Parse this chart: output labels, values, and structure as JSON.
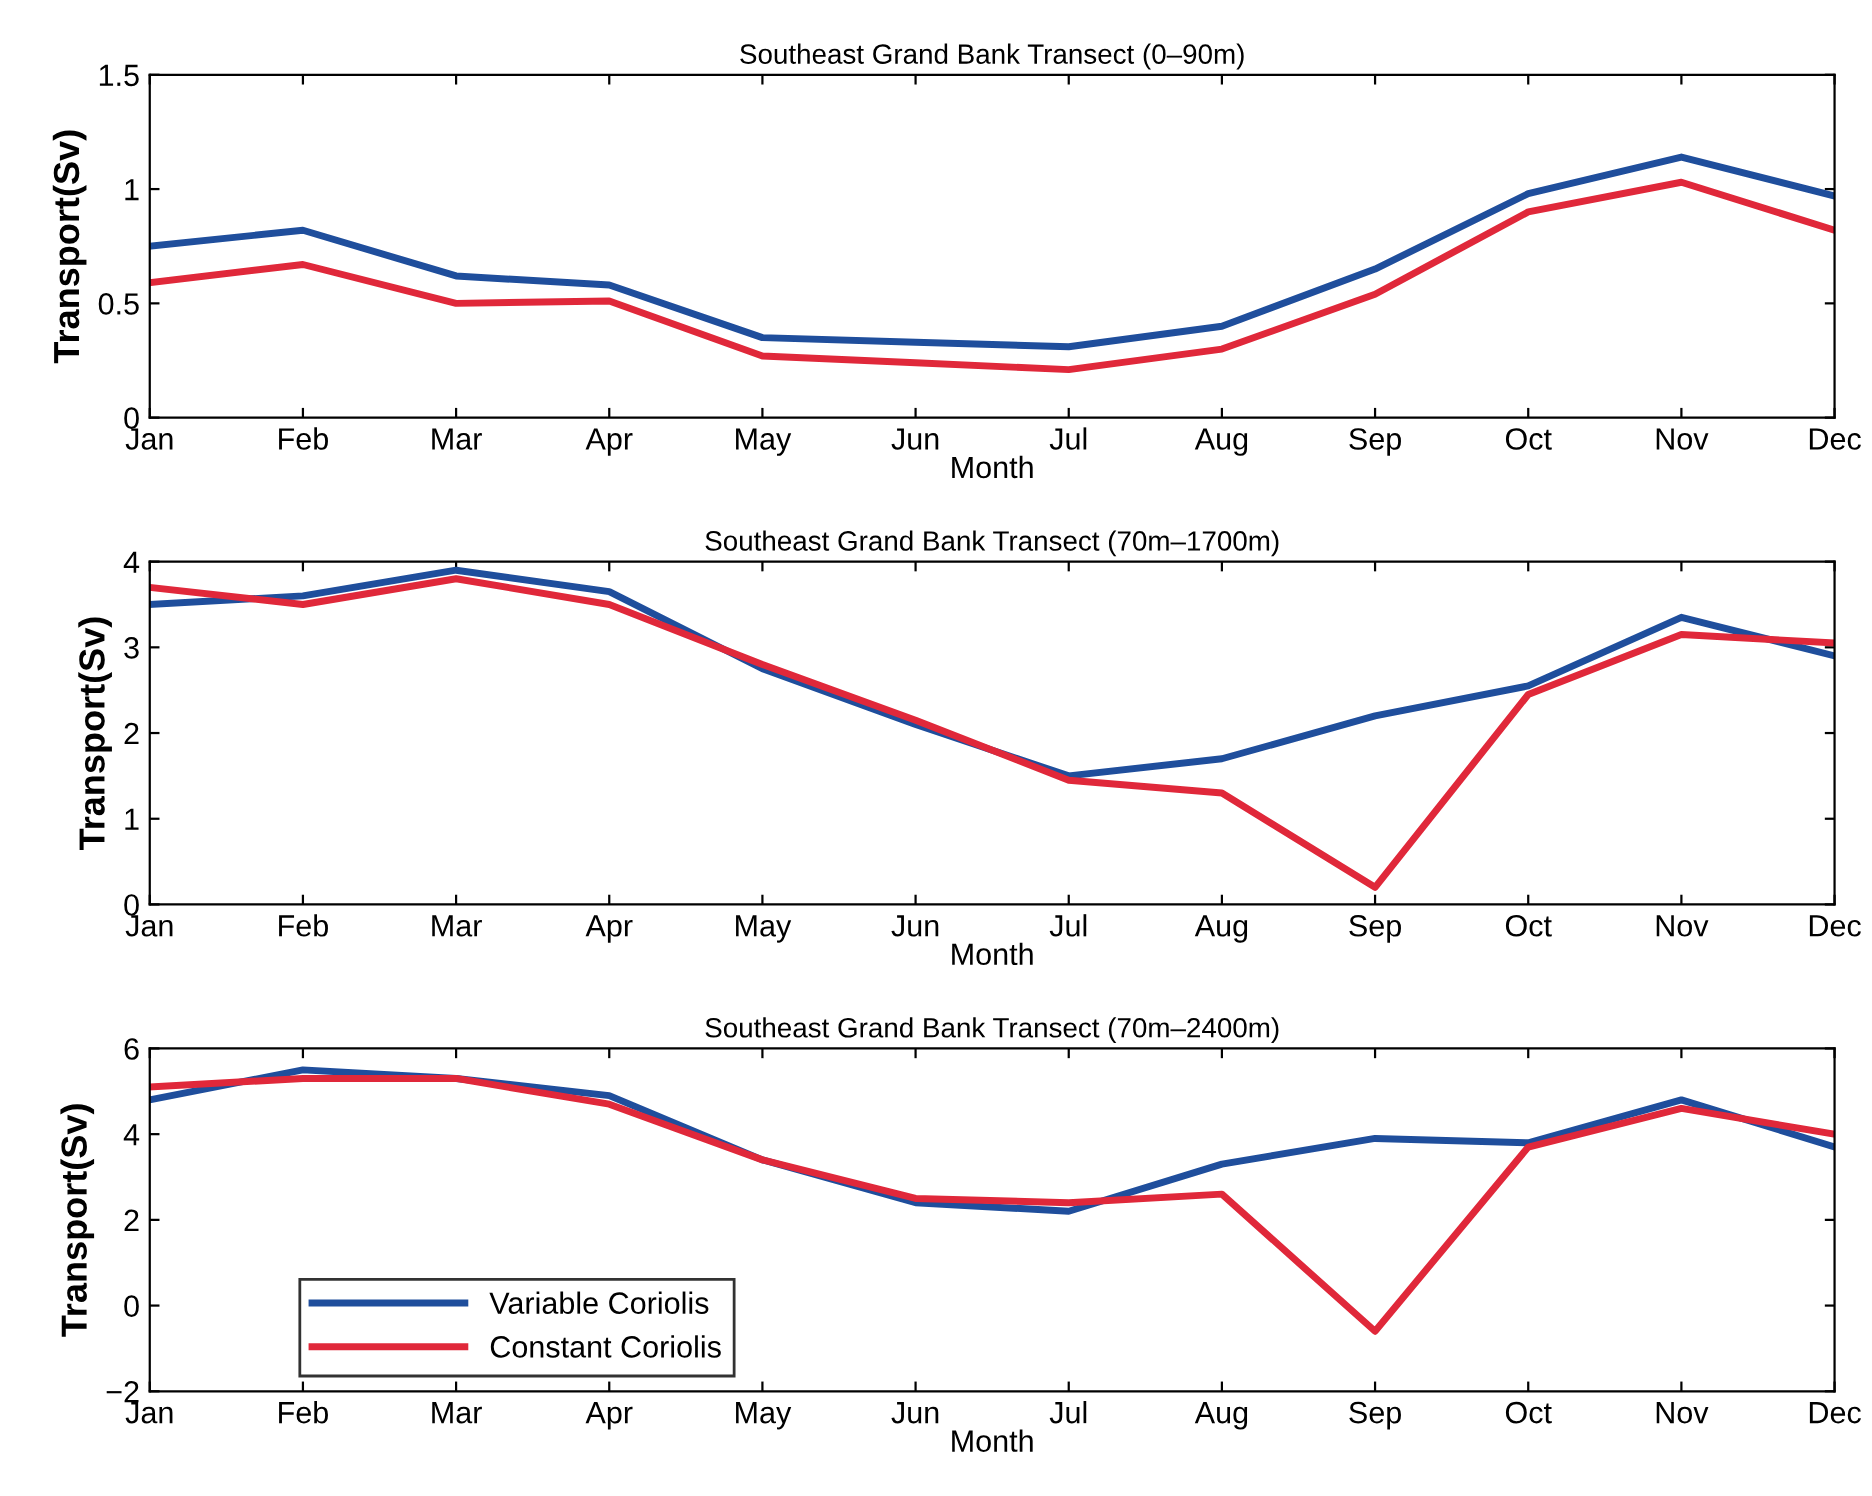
{
  "chart_data": [
    {
      "type": "line",
      "title": "Southeast Grand Bank Transect (0–90m)",
      "xlabel": "Month",
      "ylabel": "Transport(Sv)",
      "categories": [
        "Jan",
        "Feb",
        "Mar",
        "Apr",
        "May",
        "Jun",
        "Jul",
        "Aug",
        "Sep",
        "Oct",
        "Nov",
        "Dec"
      ],
      "ylim": [
        0,
        1.5
      ],
      "yticks": [
        0,
        0.5,
        1,
        1.5
      ],
      "grid": false,
      "legend": false,
      "series": [
        {
          "color": "#1f4e9c",
          "values": [
            0.75,
            0.82,
            0.62,
            0.58,
            0.35,
            0.33,
            0.31,
            0.4,
            0.65,
            0.98,
            1.14,
            0.97
          ]
        },
        {
          "color": "#e0283a",
          "values": [
            0.59,
            0.67,
            0.5,
            0.51,
            0.27,
            0.24,
            0.21,
            0.3,
            0.54,
            0.9,
            1.03,
            0.82
          ]
        }
      ]
    },
    {
      "type": "line",
      "title": "Southeast Grand Bank Transect (70m–1700m)",
      "xlabel": "Month",
      "ylabel": "Transport(Sv)",
      "categories": [
        "Jan",
        "Feb",
        "Mar",
        "Apr",
        "May",
        "Jun",
        "Jul",
        "Aug",
        "Sep",
        "Oct",
        "Nov",
        "Dec"
      ],
      "ylim": [
        0,
        4
      ],
      "yticks": [
        0,
        1,
        2,
        3,
        4
      ],
      "grid": false,
      "legend": false,
      "series": [
        {
          "color": "#1f4e9c",
          "values": [
            3.5,
            3.6,
            3.9,
            3.65,
            2.75,
            2.1,
            1.5,
            1.7,
            2.2,
            2.55,
            3.35,
            2.9
          ]
        },
        {
          "color": "#e0283a",
          "values": [
            3.7,
            3.5,
            3.8,
            3.5,
            2.8,
            2.15,
            1.45,
            1.3,
            0.2,
            2.45,
            3.15,
            3.05
          ]
        }
      ]
    },
    {
      "type": "line",
      "title": "Southeast Grand Bank Transect (70m–2400m)",
      "xlabel": "Month",
      "ylabel": "Transport(Sv)",
      "categories": [
        "Jan",
        "Feb",
        "Mar",
        "Apr",
        "May",
        "Jun",
        "Jul",
        "Aug",
        "Sep",
        "Oct",
        "Nov",
        "Dec"
      ],
      "ylim": [
        -2,
        6
      ],
      "yticks": [
        {
          "value": -2,
          "label": "−2"
        },
        0,
        2,
        4,
        6
      ],
      "grid": false,
      "legend": "bottom left",
      "series": [
        {
          "name": "Variable Coriolis",
          "color": "#1f4e9c",
          "values": [
            4.8,
            5.5,
            5.3,
            4.9,
            3.4,
            2.4,
            2.2,
            3.3,
            3.9,
            3.8,
            4.8,
            3.7
          ]
        },
        {
          "name": "Constant Coriolis",
          "color": "#e0283a",
          "values": [
            5.1,
            5.3,
            5.3,
            4.7,
            3.4,
            2.5,
            2.4,
            2.6,
            -0.6,
            3.7,
            4.6,
            4.0
          ]
        }
      ]
    }
  ]
}
